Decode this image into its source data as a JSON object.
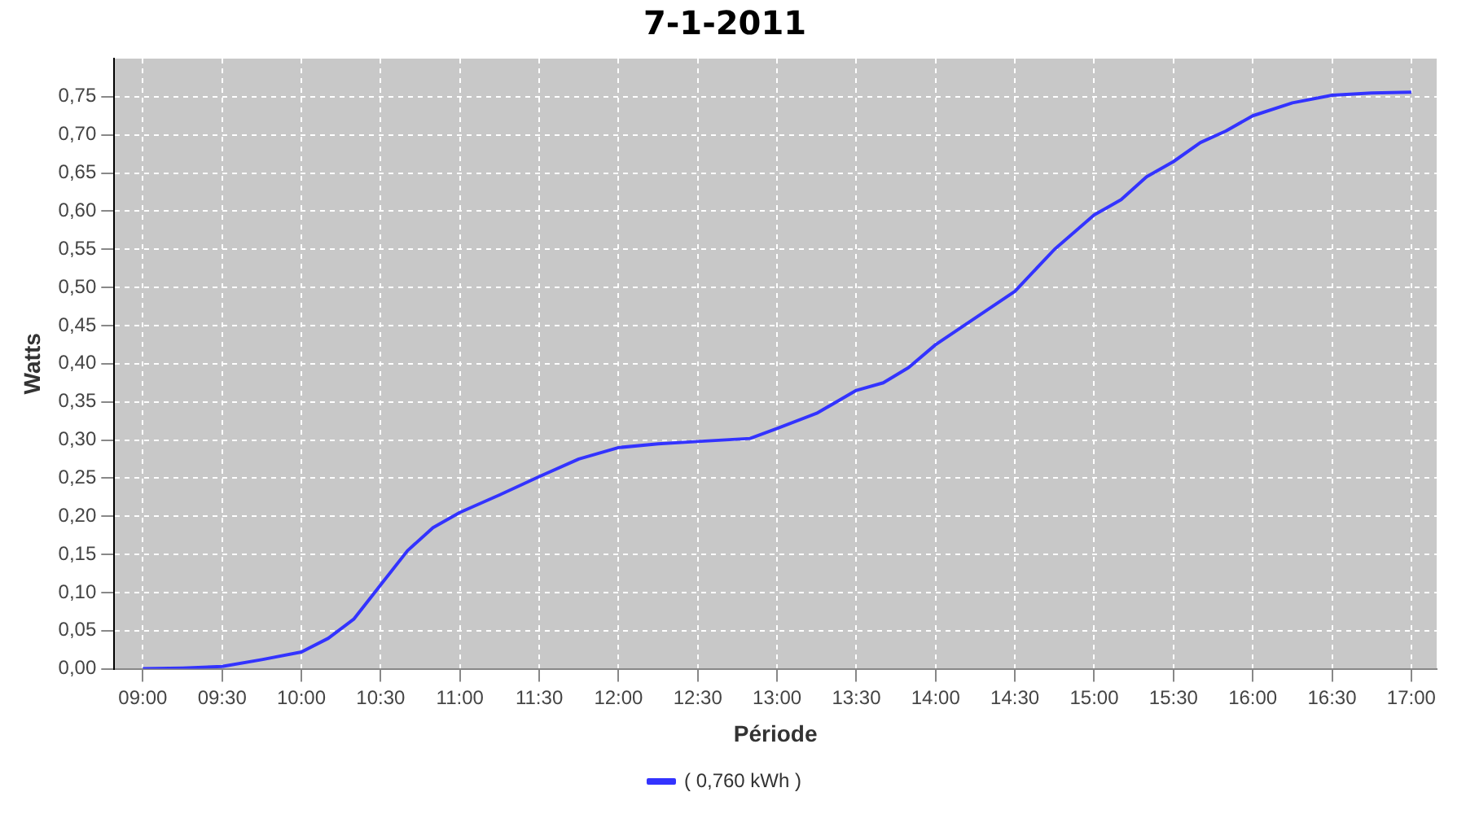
{
  "chart_data": {
    "type": "line",
    "title": "7-1-2011",
    "xlabel": "Période",
    "ylabel": "Watts",
    "x": [
      9,
      9.25,
      9.5,
      9.75,
      10,
      10.17,
      10.33,
      10.5,
      10.67,
      10.83,
      11,
      11.25,
      11.5,
      11.75,
      12,
      12.25,
      12.5,
      12.83,
      13,
      13.25,
      13.5,
      13.67,
      13.83,
      14,
      14.25,
      14.5,
      14.75,
      15,
      15.17,
      15.33,
      15.5,
      15.67,
      15.83,
      16,
      16.25,
      16.5,
      16.75,
      17
    ],
    "series": [
      {
        "name": "( 0,760 kWh )",
        "color": "#3333ff",
        "values": [
          0,
          0.001,
          0.003,
          0.012,
          0.022,
          0.04,
          0.065,
          0.11,
          0.155,
          0.185,
          0.205,
          0.228,
          0.252,
          0.275,
          0.29,
          0.295,
          0.298,
          0.302,
          0.315,
          0.335,
          0.365,
          0.375,
          0.395,
          0.425,
          0.46,
          0.495,
          0.55,
          0.595,
          0.615,
          0.645,
          0.665,
          0.69,
          0.705,
          0.725,
          0.742,
          0.752,
          0.755,
          0.756
        ]
      }
    ],
    "xlim": [
      8.82,
      17.16
    ],
    "ylim": [
      0,
      0.8
    ],
    "xticks": [
      {
        "value": 9,
        "label": "09:00"
      },
      {
        "value": 9.5,
        "label": "09:30"
      },
      {
        "value": 10,
        "label": "10:00"
      },
      {
        "value": 10.5,
        "label": "10:30"
      },
      {
        "value": 11,
        "label": "11:00"
      },
      {
        "value": 11.5,
        "label": "11:30"
      },
      {
        "value": 12,
        "label": "12:00"
      },
      {
        "value": 12.5,
        "label": "12:30"
      },
      {
        "value": 13,
        "label": "13:00"
      },
      {
        "value": 13.5,
        "label": "13:30"
      },
      {
        "value": 14,
        "label": "14:00"
      },
      {
        "value": 14.5,
        "label": "14:30"
      },
      {
        "value": 15,
        "label": "15:00"
      },
      {
        "value": 15.5,
        "label": "15:30"
      },
      {
        "value": 16,
        "label": "16:00"
      },
      {
        "value": 16.5,
        "label": "16:30"
      },
      {
        "value": 17,
        "label": "17:00"
      }
    ],
    "yticks": [
      {
        "value": 0,
        "label": "0,00"
      },
      {
        "value": 0.05,
        "label": "0,05"
      },
      {
        "value": 0.1,
        "label": "0,10"
      },
      {
        "value": 0.15,
        "label": "0,15"
      },
      {
        "value": 0.2,
        "label": "0,20"
      },
      {
        "value": 0.25,
        "label": "0,25"
      },
      {
        "value": 0.3,
        "label": "0,30"
      },
      {
        "value": 0.35,
        "label": "0,35"
      },
      {
        "value": 0.4,
        "label": "0,40"
      },
      {
        "value": 0.45,
        "label": "0,45"
      },
      {
        "value": 0.5,
        "label": "0,50"
      },
      {
        "value": 0.55,
        "label": "0,55"
      },
      {
        "value": 0.6,
        "label": "0,60"
      },
      {
        "value": 0.65,
        "label": "0,65"
      },
      {
        "value": 0.7,
        "label": "0,70"
      },
      {
        "value": 0.75,
        "label": "0,75"
      }
    ],
    "grid": true,
    "legend": "bottom",
    "marker": "none",
    "line_style": "solid"
  }
}
